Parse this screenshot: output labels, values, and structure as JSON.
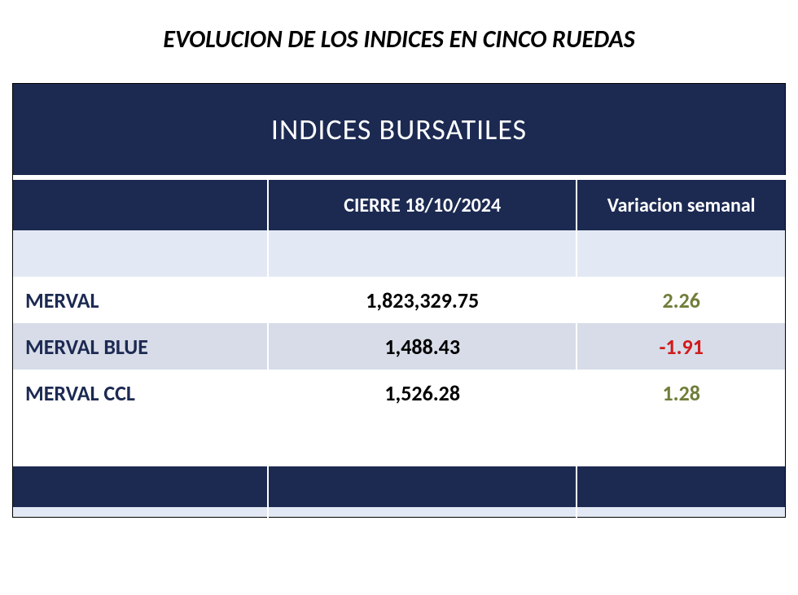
{
  "page_title": "EVOLUCION DE LOS INDICES EN CINCO RUEDAS",
  "table": {
    "type": "table",
    "title": "INDICES BURSATILES",
    "columns": [
      "",
      "CIERRE 18/10/2024",
      "Variacion semanal"
    ],
    "rows": [
      {
        "name": "MERVAL",
        "close": "1,823,329.75",
        "variation": "2.26",
        "variation_sign": "pos",
        "alt": false
      },
      {
        "name": "MERVAL BLUE",
        "close": "1,488.43",
        "variation": "-1.91",
        "variation_sign": "neg",
        "alt": true
      },
      {
        "name": "MERVAL CCL",
        "close": "1,526.28",
        "variation": "1.28",
        "variation_sign": "pos",
        "alt": false
      }
    ],
    "colors": {
      "header_bg": "#1c2a52",
      "header_text": "#ffffff",
      "row_bg": "#e3e9f4",
      "row_alt_bg": "#d7dce8",
      "name_text": "#1c2a52",
      "value_text": "#000000",
      "positive": "#6f7e3a",
      "negative": "#d11b1b",
      "border": "#000000",
      "inner_border": "#ffffff"
    },
    "fontsize": {
      "title": 36,
      "subheader": 24,
      "body": 26,
      "page_title": 30
    },
    "col_widths_pct": [
      33,
      40,
      27
    ]
  }
}
